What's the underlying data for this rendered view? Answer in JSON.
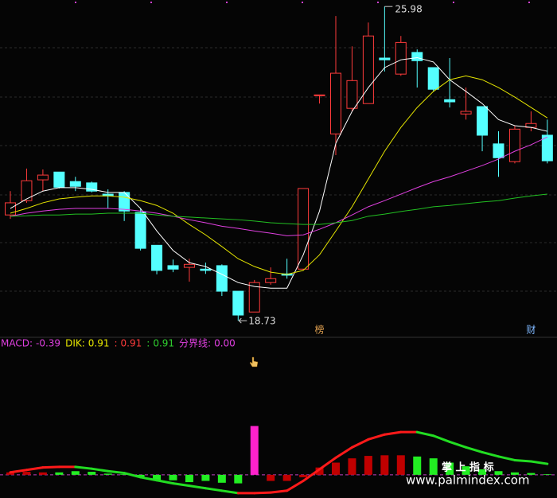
{
  "chart_data": [
    {
      "type": "candlestick",
      "ylim": [
        18.42,
        26.13
      ],
      "grid": true,
      "up_color": "#ff3b3b",
      "down_color": "#54ffff",
      "open": [
        21.17,
        21.5,
        21.98,
        22.16,
        21.94,
        21.91,
        21.65,
        21.69,
        21.23,
        20.47,
        20.0,
        19.96,
        19.92,
        20.0,
        19.41,
        18.93,
        19.61,
        19.81,
        19.92,
        23.94,
        23.04,
        23.63,
        23.74,
        24.79,
        24.42,
        24.92,
        24.57,
        23.83,
        23.5,
        23.67,
        22.81,
        22.4,
        23.19,
        23.01
      ],
      "high": [
        21.72,
        22.24,
        22.22,
        22.16,
        22.05,
        21.94,
        21.76,
        21.72,
        21.32,
        20.47,
        20.14,
        20.16,
        20.07,
        20.03,
        19.41,
        19.67,
        19.96,
        20.16,
        21.78,
        23.94,
        25.76,
        25.06,
        25.61,
        25.98,
        25.3,
        24.99,
        24.57,
        24.79,
        24.11,
        23.67,
        23.1,
        23.23,
        23.56,
        23.37
      ],
      "low": [
        21.08,
        21.45,
        21.72,
        21.78,
        21.72,
        21.69,
        21.32,
        21.03,
        20.35,
        19.8,
        19.85,
        19.63,
        19.81,
        19.3,
        18.73,
        18.93,
        19.56,
        19.7,
        19.89,
        23.74,
        22.55,
        23.56,
        23.74,
        24.48,
        24.38,
        24.11,
        24.02,
        23.65,
        23.37,
        22.64,
        22.05,
        22.36,
        23.1,
        22.36
      ],
      "close": [
        21.45,
        21.96,
        22.09,
        21.81,
        21.83,
        21.72,
        21.61,
        21.26,
        20.4,
        19.89,
        19.92,
        20.03,
        19.89,
        19.41,
        18.86,
        19.61,
        19.7,
        19.78,
        21.78,
        23.94,
        24.44,
        24.27,
        25.3,
        24.75,
        25.15,
        24.73,
        24.07,
        23.78,
        23.56,
        23.01,
        22.49,
        23.15,
        23.28,
        22.42
      ],
      "series": [
        {
          "color": "#ffffff",
          "values": [
            21.32,
            21.54,
            21.72,
            21.8,
            21.8,
            21.76,
            21.69,
            21.69,
            21.32,
            20.8,
            20.35,
            20.07,
            19.98,
            19.8,
            19.61,
            19.52,
            19.48,
            19.48,
            20.25,
            21.26,
            22.82,
            23.56,
            24.11,
            24.57,
            24.75,
            24.8,
            24.7,
            24.29,
            24.02,
            23.74,
            23.37,
            23.23,
            23.19,
            23.1
          ]
        },
        {
          "color": "#e6e600",
          "values": [
            21.21,
            21.32,
            21.45,
            21.54,
            21.58,
            21.61,
            21.61,
            21.58,
            21.5,
            21.39,
            21.21,
            20.95,
            20.71,
            20.44,
            20.16,
            19.98,
            19.85,
            19.8,
            19.89,
            20.25,
            20.8,
            21.36,
            22.0,
            22.64,
            23.19,
            23.65,
            24.02,
            24.29,
            24.38,
            24.29,
            24.11,
            23.89,
            23.65,
            23.41
          ]
        },
        {
          "color": "#e040e0",
          "values": [
            21.14,
            21.21,
            21.26,
            21.3,
            21.32,
            21.32,
            21.32,
            21.3,
            21.26,
            21.21,
            21.14,
            21.06,
            20.99,
            20.91,
            20.86,
            20.8,
            20.75,
            20.69,
            20.71,
            20.84,
            20.99,
            21.17,
            21.36,
            21.5,
            21.65,
            21.8,
            21.94,
            22.05,
            22.18,
            22.31,
            22.46,
            22.64,
            22.79,
            22.97
          ]
        },
        {
          "color": "#22c022",
          "values": [
            21.14,
            21.15,
            21.17,
            21.17,
            21.19,
            21.19,
            21.21,
            21.21,
            21.21,
            21.17,
            21.14,
            21.12,
            21.1,
            21.08,
            21.06,
            21.03,
            20.99,
            20.97,
            20.95,
            20.95,
            20.99,
            21.04,
            21.14,
            21.19,
            21.25,
            21.3,
            21.36,
            21.39,
            21.43,
            21.47,
            21.5,
            21.56,
            21.61,
            21.65
          ]
        }
      ],
      "annotations": [
        {
          "text": "榜",
          "x": 19,
          "color": "#e0a050"
        },
        {
          "text": "财",
          "x": 32,
          "color": "#7fb8ff"
        }
      ]
    },
    {
      "type": "macd",
      "ylim": [
        -1.9,
        9.9
      ],
      "readouts": [
        {
          "label": "MACD:",
          "value": -0.39,
          "color": "#e040e0"
        },
        {
          "label": "DIK:",
          "value": 0.91,
          "color": "#e6e600"
        },
        {
          "label": ":",
          "value": 0.91,
          "color": "#ff3b3b"
        },
        {
          "label": ":",
          "value": 0.91,
          "color": "#30d030"
        },
        {
          "label": "分界线:",
          "value": 0,
          "value_label": "0.00",
          "color": "#e040e0"
        }
      ],
      "bars": {
        "values": [
          0.2,
          0.25,
          0.2,
          0.2,
          0.3,
          0.25,
          0.1,
          0.05,
          -0.2,
          -0.45,
          -0.45,
          -0.6,
          -0.5,
          -0.65,
          -0.7,
          4.0,
          -0.5,
          -0.5,
          -0.2,
          0.6,
          1.0,
          1.35,
          1.55,
          1.6,
          1.6,
          1.5,
          1.35,
          1.0,
          0.7,
          0.45,
          0.3,
          0.2,
          0.15,
          0.05
        ],
        "colors": [
          "#c00000",
          "#c00000",
          "#c00000",
          "#22ee22",
          "#22ee22",
          "#22ee22",
          "#22ee22",
          "#22ee22",
          "#22ee22",
          "#22ee22",
          "#22ee22",
          "#22ee22",
          "#22ee22",
          "#22ee22",
          "#22ee22",
          "#ff22cc",
          "#c00000",
          "#c00000",
          "#c00000",
          "#c00000",
          "#c00000",
          "#c00000",
          "#c00000",
          "#c00000",
          "#c00000",
          "#22ee22",
          "#22ee22",
          "#22ee22",
          "#22ee22",
          "#22ee22",
          "#22ee22",
          "#22ee22",
          "#22ee22",
          "#22ee22"
        ]
      },
      "line": {
        "values": [
          0.2,
          0.4,
          0.6,
          0.65,
          0.65,
          0.5,
          0.3,
          0.15,
          -0.2,
          -0.45,
          -0.7,
          -0.9,
          -1.1,
          -1.3,
          -1.5,
          -1.5,
          -1.45,
          -1.3,
          -0.5,
          0.45,
          1.4,
          2.25,
          2.9,
          3.3,
          3.5,
          3.5,
          3.2,
          2.7,
          2.25,
          1.85,
          1.5,
          1.2,
          1.1,
          0.9
        ],
        "up_color": "#ff1a1a",
        "down_color": "#22dd22"
      }
    }
  ],
  "watermark": {
    "brand": "掌 上 指 标",
    "url": "www.palmindex.com"
  }
}
